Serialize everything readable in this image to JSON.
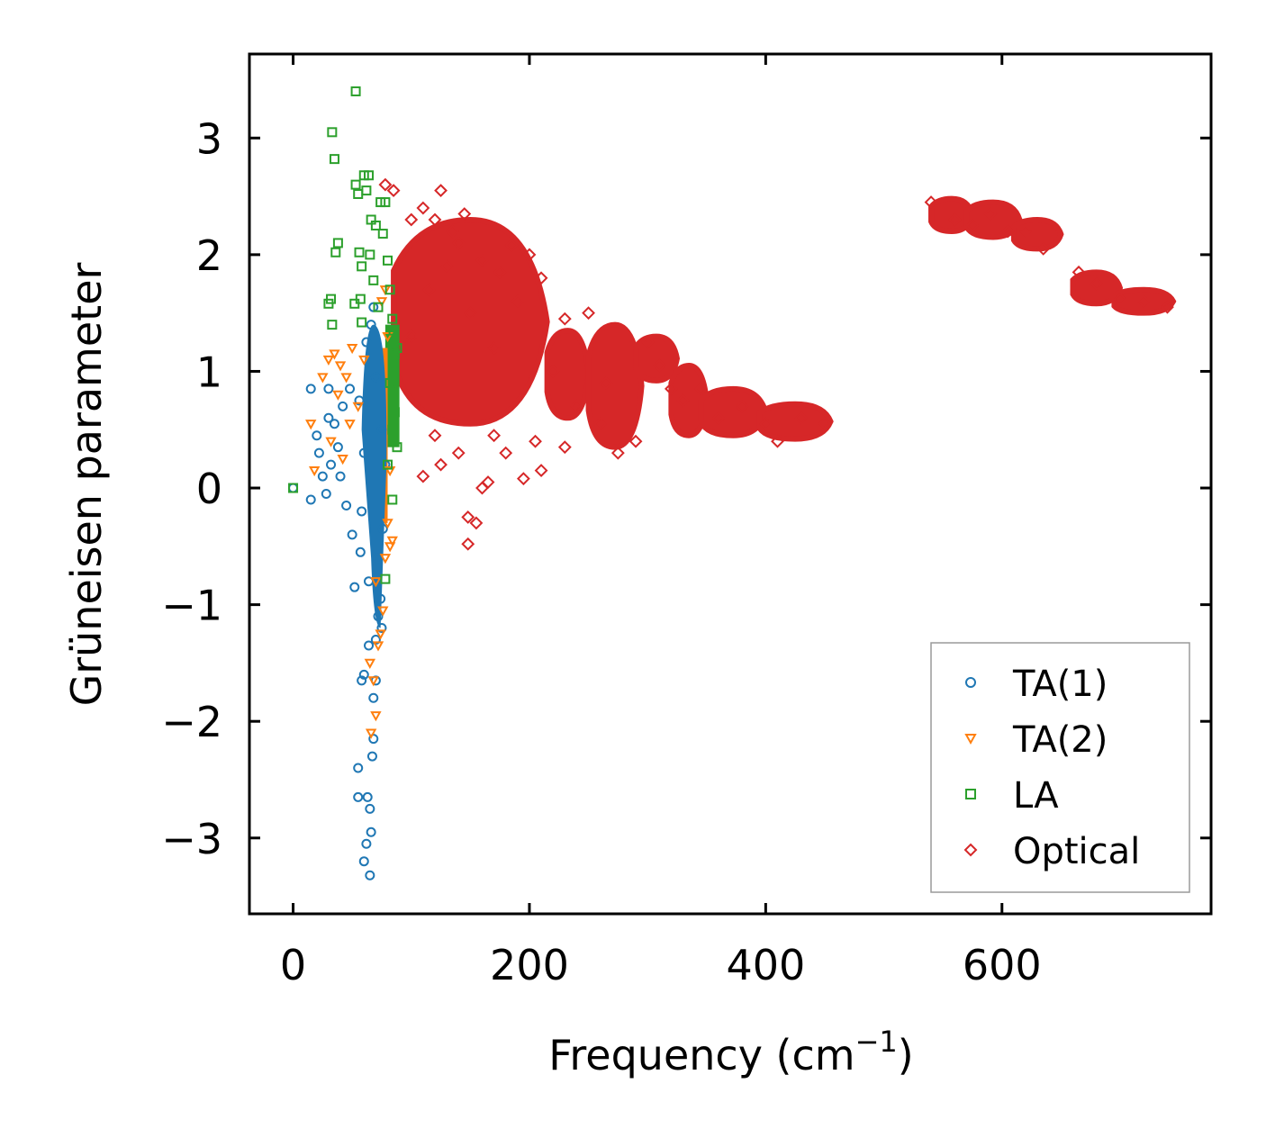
{
  "chart_data": {
    "type": "scatter",
    "xlabel": "Frequency (cm",
    "xlabel_superscript": "−1",
    "xlabel_suffix": ")",
    "ylabel": "Grüneisen parameter",
    "xlim": [
      -37,
      777
    ],
    "ylim": [
      -3.65,
      3.72
    ],
    "xticks": [
      0,
      200,
      400,
      600
    ],
    "xtick_labels": [
      "0",
      "200",
      "400",
      "600"
    ],
    "yticks": [
      -3,
      -2,
      -1,
      0,
      1,
      2,
      3
    ],
    "ytick_labels": [
      "−3",
      "−2",
      "−1",
      "0",
      "1",
      "2",
      "3"
    ],
    "grid": false,
    "legend_position": "lower-right",
    "series": [
      {
        "name": "TA(1)",
        "marker": "circle",
        "color": "#1f77b4",
        "points": [
          [
            0,
            0
          ],
          [
            15,
            -0.1
          ],
          [
            15,
            0.85
          ],
          [
            20,
            0.45
          ],
          [
            22,
            0.3
          ],
          [
            25,
            0.1
          ],
          [
            28,
            -0.05
          ],
          [
            30,
            0.85
          ],
          [
            30,
            0.6
          ],
          [
            32,
            0.2
          ],
          [
            35,
            0.55
          ],
          [
            38,
            0.35
          ],
          [
            40,
            0.1
          ],
          [
            42,
            0.7
          ],
          [
            45,
            -0.15
          ],
          [
            48,
            0.85
          ],
          [
            50,
            -0.4
          ],
          [
            52,
            -0.85
          ],
          [
            55,
            -2.4
          ],
          [
            55,
            -2.65
          ],
          [
            57,
            -0.55
          ],
          [
            58,
            -1.65
          ],
          [
            60,
            -1.6
          ],
          [
            60,
            -3.2
          ],
          [
            62,
            -3.05
          ],
          [
            63,
            -2.65
          ],
          [
            64,
            -1.35
          ],
          [
            65,
            -3.32
          ],
          [
            65,
            -2.75
          ],
          [
            66,
            -2.95
          ],
          [
            67,
            -2.3
          ],
          [
            68,
            -2.15
          ],
          [
            68,
            -1.8
          ],
          [
            70,
            -1.65
          ],
          [
            70,
            -1.3
          ],
          [
            72,
            -1.1
          ],
          [
            72,
            -0.6
          ],
          [
            74,
            -0.95
          ],
          [
            75,
            -1.2
          ],
          [
            75,
            0.5
          ],
          [
            76,
            -0.35
          ],
          [
            78,
            0.2
          ],
          [
            62,
            1.25
          ],
          [
            66,
            1.4
          ],
          [
            68,
            1.55
          ],
          [
            70,
            0.95
          ],
          [
            60,
            0.3
          ],
          [
            56,
            0.75
          ],
          [
            64,
            -0.8
          ],
          [
            58,
            -0.2
          ]
        ]
      },
      {
        "name": "TA(2)",
        "marker": "triangle-down",
        "color": "#ff7f0e",
        "points": [
          [
            15,
            0.55
          ],
          [
            18,
            0.15
          ],
          [
            25,
            0.95
          ],
          [
            30,
            1.1
          ],
          [
            32,
            0.4
          ],
          [
            35,
            1.15
          ],
          [
            38,
            0.8
          ],
          [
            40,
            1.05
          ],
          [
            42,
            0.25
          ],
          [
            45,
            0.95
          ],
          [
            48,
            0.55
          ],
          [
            50,
            1.2
          ],
          [
            55,
            0.7
          ],
          [
            60,
            1.1
          ],
          [
            65,
            -1.5
          ],
          [
            66,
            -2.1
          ],
          [
            68,
            -1.65
          ],
          [
            70,
            -1.95
          ],
          [
            72,
            -1.35
          ],
          [
            74,
            -1.25
          ],
          [
            75,
            1.6
          ],
          [
            76,
            -1.05
          ],
          [
            78,
            1.7
          ],
          [
            80,
            1.3
          ],
          [
            80,
            -0.3
          ],
          [
            82,
            -0.5
          ],
          [
            84,
            -0.45
          ],
          [
            82,
            0.15
          ],
          [
            78,
            -0.6
          ],
          [
            70,
            -0.8
          ]
        ]
      },
      {
        "name": "LA",
        "marker": "square",
        "color": "#2ca02c",
        "points": [
          [
            0,
            0
          ],
          [
            30,
            1.58
          ],
          [
            32,
            1.62
          ],
          [
            33,
            1.4
          ],
          [
            33,
            3.05
          ],
          [
            35,
            2.82
          ],
          [
            36,
            2.02
          ],
          [
            38,
            2.1
          ],
          [
            52,
            1.58
          ],
          [
            53,
            3.4
          ],
          [
            53,
            2.6
          ],
          [
            55,
            2.52
          ],
          [
            56,
            2.02
          ],
          [
            57,
            1.62
          ],
          [
            58,
            1.42
          ],
          [
            58,
            1.9
          ],
          [
            60,
            2.68
          ],
          [
            62,
            2.55
          ],
          [
            64,
            2.68
          ],
          [
            65,
            2.0
          ],
          [
            66,
            2.3
          ],
          [
            68,
            1.78
          ],
          [
            70,
            2.25
          ],
          [
            72,
            1.55
          ],
          [
            74,
            2.45
          ],
          [
            76,
            2.18
          ],
          [
            78,
            2.45
          ],
          [
            78,
            -0.78
          ],
          [
            80,
            1.95
          ],
          [
            82,
            1.7
          ],
          [
            82,
            0.9
          ],
          [
            84,
            0.5
          ],
          [
            85,
            1.35
          ],
          [
            86,
            1.15
          ],
          [
            86,
            0.65
          ],
          [
            88,
            1.2
          ],
          [
            88,
            0.35
          ],
          [
            84,
            -0.1
          ],
          [
            80,
            0.2
          ],
          [
            84,
            1.45
          ]
        ]
      },
      {
        "name": "Optical",
        "marker": "diamond",
        "color": "#d62728",
        "points": [
          [
            78,
            2.6
          ],
          [
            85,
            2.55
          ],
          [
            100,
            2.3
          ],
          [
            110,
            2.4
          ],
          [
            120,
            2.3
          ],
          [
            125,
            2.55
          ],
          [
            135,
            2.2
          ],
          [
            140,
            2.1
          ],
          [
            145,
            2.35
          ],
          [
            160,
            1.95
          ],
          [
            175,
            1.85
          ],
          [
            185,
            2.08
          ],
          [
            200,
            2.0
          ],
          [
            210,
            1.8
          ],
          [
            230,
            1.45
          ],
          [
            250,
            1.5
          ],
          [
            265,
            0.9
          ],
          [
            290,
            0.4
          ],
          [
            120,
            0.45
          ],
          [
            110,
            0.1
          ],
          [
            125,
            0.2
          ],
          [
            140,
            0.3
          ],
          [
            148,
            -0.25
          ],
          [
            148,
            -0.48
          ],
          [
            155,
            -0.3
          ],
          [
            160,
            0.0
          ],
          [
            165,
            0.05
          ],
          [
            170,
            0.45
          ],
          [
            180,
            0.3
          ],
          [
            195,
            0.08
          ],
          [
            205,
            0.4
          ],
          [
            210,
            0.15
          ],
          [
            230,
            0.35
          ],
          [
            100,
            1.3
          ],
          [
            115,
            1.7
          ],
          [
            130,
            1.9
          ],
          [
            150,
            1.5
          ],
          [
            170,
            1.2
          ],
          [
            190,
            1.6
          ],
          [
            220,
            1.0
          ],
          [
            240,
            0.7
          ],
          [
            260,
            0.55
          ],
          [
            275,
            0.3
          ],
          [
            300,
            1.25
          ],
          [
            310,
            1.05
          ],
          [
            320,
            0.85
          ],
          [
            330,
            0.75
          ],
          [
            345,
            0.85
          ],
          [
            360,
            0.6
          ],
          [
            380,
            0.7
          ],
          [
            400,
            0.55
          ],
          [
            410,
            0.4
          ],
          [
            430,
            0.6
          ],
          [
            450,
            0.55
          ],
          [
            540,
            2.45
          ],
          [
            560,
            2.3
          ],
          [
            575,
            2.25
          ],
          [
            590,
            2.35
          ],
          [
            605,
            2.2
          ],
          [
            620,
            2.2
          ],
          [
            635,
            2.05
          ],
          [
            665,
            1.85
          ],
          [
            680,
            1.75
          ],
          [
            700,
            1.62
          ],
          [
            720,
            1.6
          ],
          [
            740,
            1.55
          ]
        ]
      }
    ],
    "optical_clusters": [
      {
        "x0": 85,
        "x1": 215,
        "ytop": 2.3,
        "ybot": 0.55
      },
      {
        "x0": 215,
        "x1": 250,
        "ytop": 1.35,
        "ybot": 0.6
      },
      {
        "x0": 250,
        "x1": 295,
        "ytop": 1.4,
        "ybot": 0.35
      },
      {
        "x0": 290,
        "x1": 325,
        "ytop": 1.3,
        "ybot": 0.92
      },
      {
        "x0": 320,
        "x1": 350,
        "ytop": 1.05,
        "ybot": 0.45
      },
      {
        "x0": 345,
        "x1": 400,
        "ytop": 0.85,
        "ybot": 0.45
      },
      {
        "x0": 395,
        "x1": 455,
        "ytop": 0.72,
        "ybot": 0.42
      },
      {
        "x0": 540,
        "x1": 575,
        "ytop": 2.48,
        "ybot": 2.2
      },
      {
        "x0": 570,
        "x1": 615,
        "ytop": 2.45,
        "ybot": 2.15
      },
      {
        "x0": 610,
        "x1": 650,
        "ytop": 2.3,
        "ybot": 2.05
      },
      {
        "x0": 660,
        "x1": 700,
        "ytop": 1.85,
        "ybot": 1.58
      },
      {
        "x0": 695,
        "x1": 745,
        "ytop": 1.7,
        "ybot": 1.5
      }
    ],
    "acoustic_cloud": {
      "x0": 55,
      "x1": 90,
      "ytop": 1.4,
      "ybot": -1.2
    }
  }
}
